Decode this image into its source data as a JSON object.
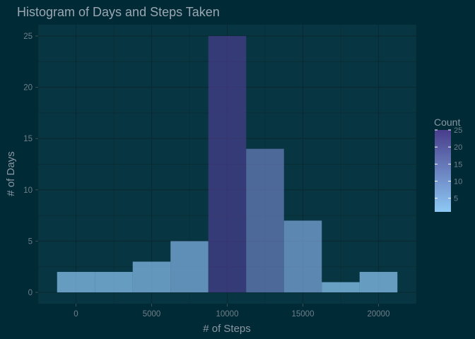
{
  "chart_data": {
    "type": "bar",
    "title": "Histogram of Days and Steps Taken",
    "xlabel": "# of Steps",
    "ylabel": "# of Days",
    "xlim": [
      -2500,
      22500
    ],
    "ylim": [
      -1.1,
      26.1
    ],
    "x_ticks": [
      0,
      5000,
      10000,
      15000,
      20000
    ],
    "y_ticks": [
      0,
      5,
      10,
      15,
      20,
      25
    ],
    "bin_width": 2500,
    "bins": [
      {
        "x": 0,
        "count": 2
      },
      {
        "x": 2500,
        "count": 2
      },
      {
        "x": 5000,
        "count": 3
      },
      {
        "x": 7500,
        "count": 5
      },
      {
        "x": 10000,
        "count": 25
      },
      {
        "x": 12500,
        "count": 14
      },
      {
        "x": 15000,
        "count": 7
      },
      {
        "x": 17500,
        "count": 1
      },
      {
        "x": 20000,
        "count": 2
      }
    ],
    "legend": {
      "title": "Count",
      "ticks": [
        5,
        10,
        15,
        20,
        25
      ],
      "range": [
        1,
        25
      ],
      "low_color": "#8ec9f5",
      "high_color": "#483d8b",
      "placement": "right"
    },
    "colors": {
      "background": "#002b36",
      "panel": "#073642",
      "grid": "#0a2a33"
    },
    "grid": true
  }
}
